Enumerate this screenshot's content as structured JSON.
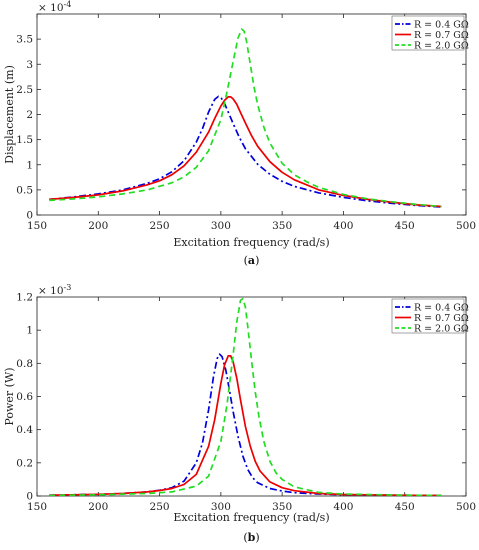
{
  "chart_data": [
    {
      "type": "line",
      "caption_prefix": "(",
      "caption_letter": "a",
      "caption_suffix": ")",
      "xlabel": "Excitation frequency (rad/s)",
      "ylabel": "Displacement (m)",
      "multiplier": "× 10",
      "exponent": "-4",
      "xlim": [
        150,
        500
      ],
      "ylim": [
        0,
        4
      ],
      "xticks": [
        150,
        200,
        250,
        300,
        350,
        400,
        450,
        500
      ],
      "yticks": [
        0,
        0.5,
        1,
        1.5,
        2,
        2.5,
        3,
        3.5,
        4
      ],
      "ytick_labels": [
        "0",
        "0.5",
        "1",
        "1.5",
        "2",
        "2.5",
        "3",
        "3.5",
        ""
      ],
      "legend_position": "top-right",
      "series": [
        {
          "name": "R = 0.4 GΩ",
          "color": "#0000dd",
          "dash": "dashdot",
          "x": [
            160,
            180,
            200,
            220,
            240,
            250,
            260,
            270,
            280,
            285,
            290,
            295,
            298,
            300,
            303,
            306,
            310,
            315,
            320,
            330,
            340,
            350,
            360,
            380,
            400,
            420,
            440,
            460,
            480
          ],
          "y": [
            0.31,
            0.36,
            0.42,
            0.5,
            0.63,
            0.72,
            0.86,
            1.08,
            1.45,
            1.72,
            2.05,
            2.3,
            2.36,
            2.34,
            2.22,
            2.05,
            1.82,
            1.55,
            1.32,
            1.01,
            0.81,
            0.67,
            0.57,
            0.44,
            0.35,
            0.28,
            0.23,
            0.19,
            0.16
          ]
        },
        {
          "name": "R = 0.7 GΩ",
          "color": "#ee0000",
          "dash": "solid",
          "x": [
            160,
            180,
            200,
            220,
            240,
            250,
            260,
            270,
            280,
            290,
            295,
            300,
            303,
            306,
            308,
            310,
            313,
            316,
            320,
            325,
            330,
            340,
            350,
            360,
            380,
            400,
            420,
            440,
            460,
            480
          ],
          "y": [
            0.31,
            0.35,
            0.4,
            0.48,
            0.6,
            0.68,
            0.8,
            0.98,
            1.25,
            1.65,
            1.92,
            2.17,
            2.28,
            2.35,
            2.35,
            2.31,
            2.2,
            2.04,
            1.83,
            1.58,
            1.37,
            1.06,
            0.85,
            0.7,
            0.5,
            0.39,
            0.31,
            0.25,
            0.2,
            0.17
          ]
        },
        {
          "name": "R = 2.0 GΩ",
          "color": "#22dd22",
          "dash": "dashed",
          "x": [
            160,
            180,
            200,
            220,
            240,
            260,
            270,
            280,
            290,
            300,
            305,
            310,
            314,
            317,
            319,
            321,
            324,
            327,
            330,
            335,
            340,
            350,
            360,
            370,
            380,
            400,
            420,
            440,
            460,
            480
          ],
          "y": [
            0.29,
            0.32,
            0.36,
            0.42,
            0.5,
            0.64,
            0.76,
            0.95,
            1.28,
            1.9,
            2.45,
            3.05,
            3.52,
            3.7,
            3.66,
            3.45,
            3.0,
            2.55,
            2.2,
            1.75,
            1.43,
            1.03,
            0.8,
            0.66,
            0.55,
            0.41,
            0.32,
            0.26,
            0.21,
            0.17
          ]
        }
      ]
    },
    {
      "type": "line",
      "caption_prefix": "(",
      "caption_letter": "b",
      "caption_suffix": ")",
      "xlabel": "Excitation frequency (rad/s)",
      "ylabel": "Power (W)",
      "multiplier": "× 10",
      "exponent": "-3",
      "xlim": [
        150,
        500
      ],
      "ylim": [
        0,
        1.2
      ],
      "xticks": [
        150,
        200,
        250,
        300,
        350,
        400,
        450,
        500
      ],
      "yticks": [
        0,
        0.2,
        0.4,
        0.6,
        0.8,
        1,
        1.2
      ],
      "ytick_labels": [
        "0",
        "0.2",
        "0.4",
        "0.6",
        "0.8",
        "1",
        "1.2"
      ],
      "legend_position": "top-right",
      "series": [
        {
          "name": "R = 0.4 GΩ",
          "color": "#0000dd",
          "dash": "dashdot",
          "x": [
            160,
            200,
            220,
            240,
            250,
            260,
            270,
            280,
            285,
            290,
            294,
            297,
            299,
            301,
            304,
            307,
            310,
            314,
            318,
            322,
            326,
            330,
            340,
            350,
            360,
            380,
            400,
            440,
            480
          ],
          "y": [
            0.005,
            0.01,
            0.015,
            0.025,
            0.035,
            0.05,
            0.09,
            0.2,
            0.32,
            0.52,
            0.72,
            0.83,
            0.855,
            0.84,
            0.76,
            0.64,
            0.51,
            0.36,
            0.24,
            0.16,
            0.11,
            0.08,
            0.045,
            0.03,
            0.02,
            0.012,
            0.008,
            0.005,
            0.003
          ]
        },
        {
          "name": "R = 0.7 GΩ",
          "color": "#ee0000",
          "dash": "solid",
          "x": [
            160,
            200,
            220,
            240,
            250,
            260,
            270,
            280,
            290,
            295,
            300,
            303,
            306,
            308,
            310,
            313,
            316,
            320,
            324,
            328,
            332,
            340,
            350,
            360,
            380,
            400,
            440,
            480
          ],
          "y": [
            0.005,
            0.01,
            0.015,
            0.025,
            0.033,
            0.045,
            0.07,
            0.13,
            0.3,
            0.46,
            0.68,
            0.79,
            0.845,
            0.845,
            0.81,
            0.71,
            0.58,
            0.42,
            0.3,
            0.21,
            0.15,
            0.085,
            0.05,
            0.032,
            0.015,
            0.009,
            0.005,
            0.003
          ]
        },
        {
          "name": "R = 2.0 GΩ",
          "color": "#22dd22",
          "dash": "dashed",
          "x": [
            160,
            200,
            240,
            260,
            280,
            290,
            300,
            305,
            310,
            313,
            316,
            318,
            320,
            322,
            325,
            328,
            331,
            335,
            340,
            345,
            350,
            360,
            380,
            400,
            440,
            480
          ],
          "y": [
            0.003,
            0.007,
            0.015,
            0.025,
            0.06,
            0.12,
            0.33,
            0.55,
            0.85,
            1.05,
            1.18,
            1.19,
            1.14,
            1.02,
            0.82,
            0.63,
            0.48,
            0.33,
            0.21,
            0.14,
            0.1,
            0.055,
            0.022,
            0.012,
            0.006,
            0.003
          ]
        }
      ]
    }
  ]
}
